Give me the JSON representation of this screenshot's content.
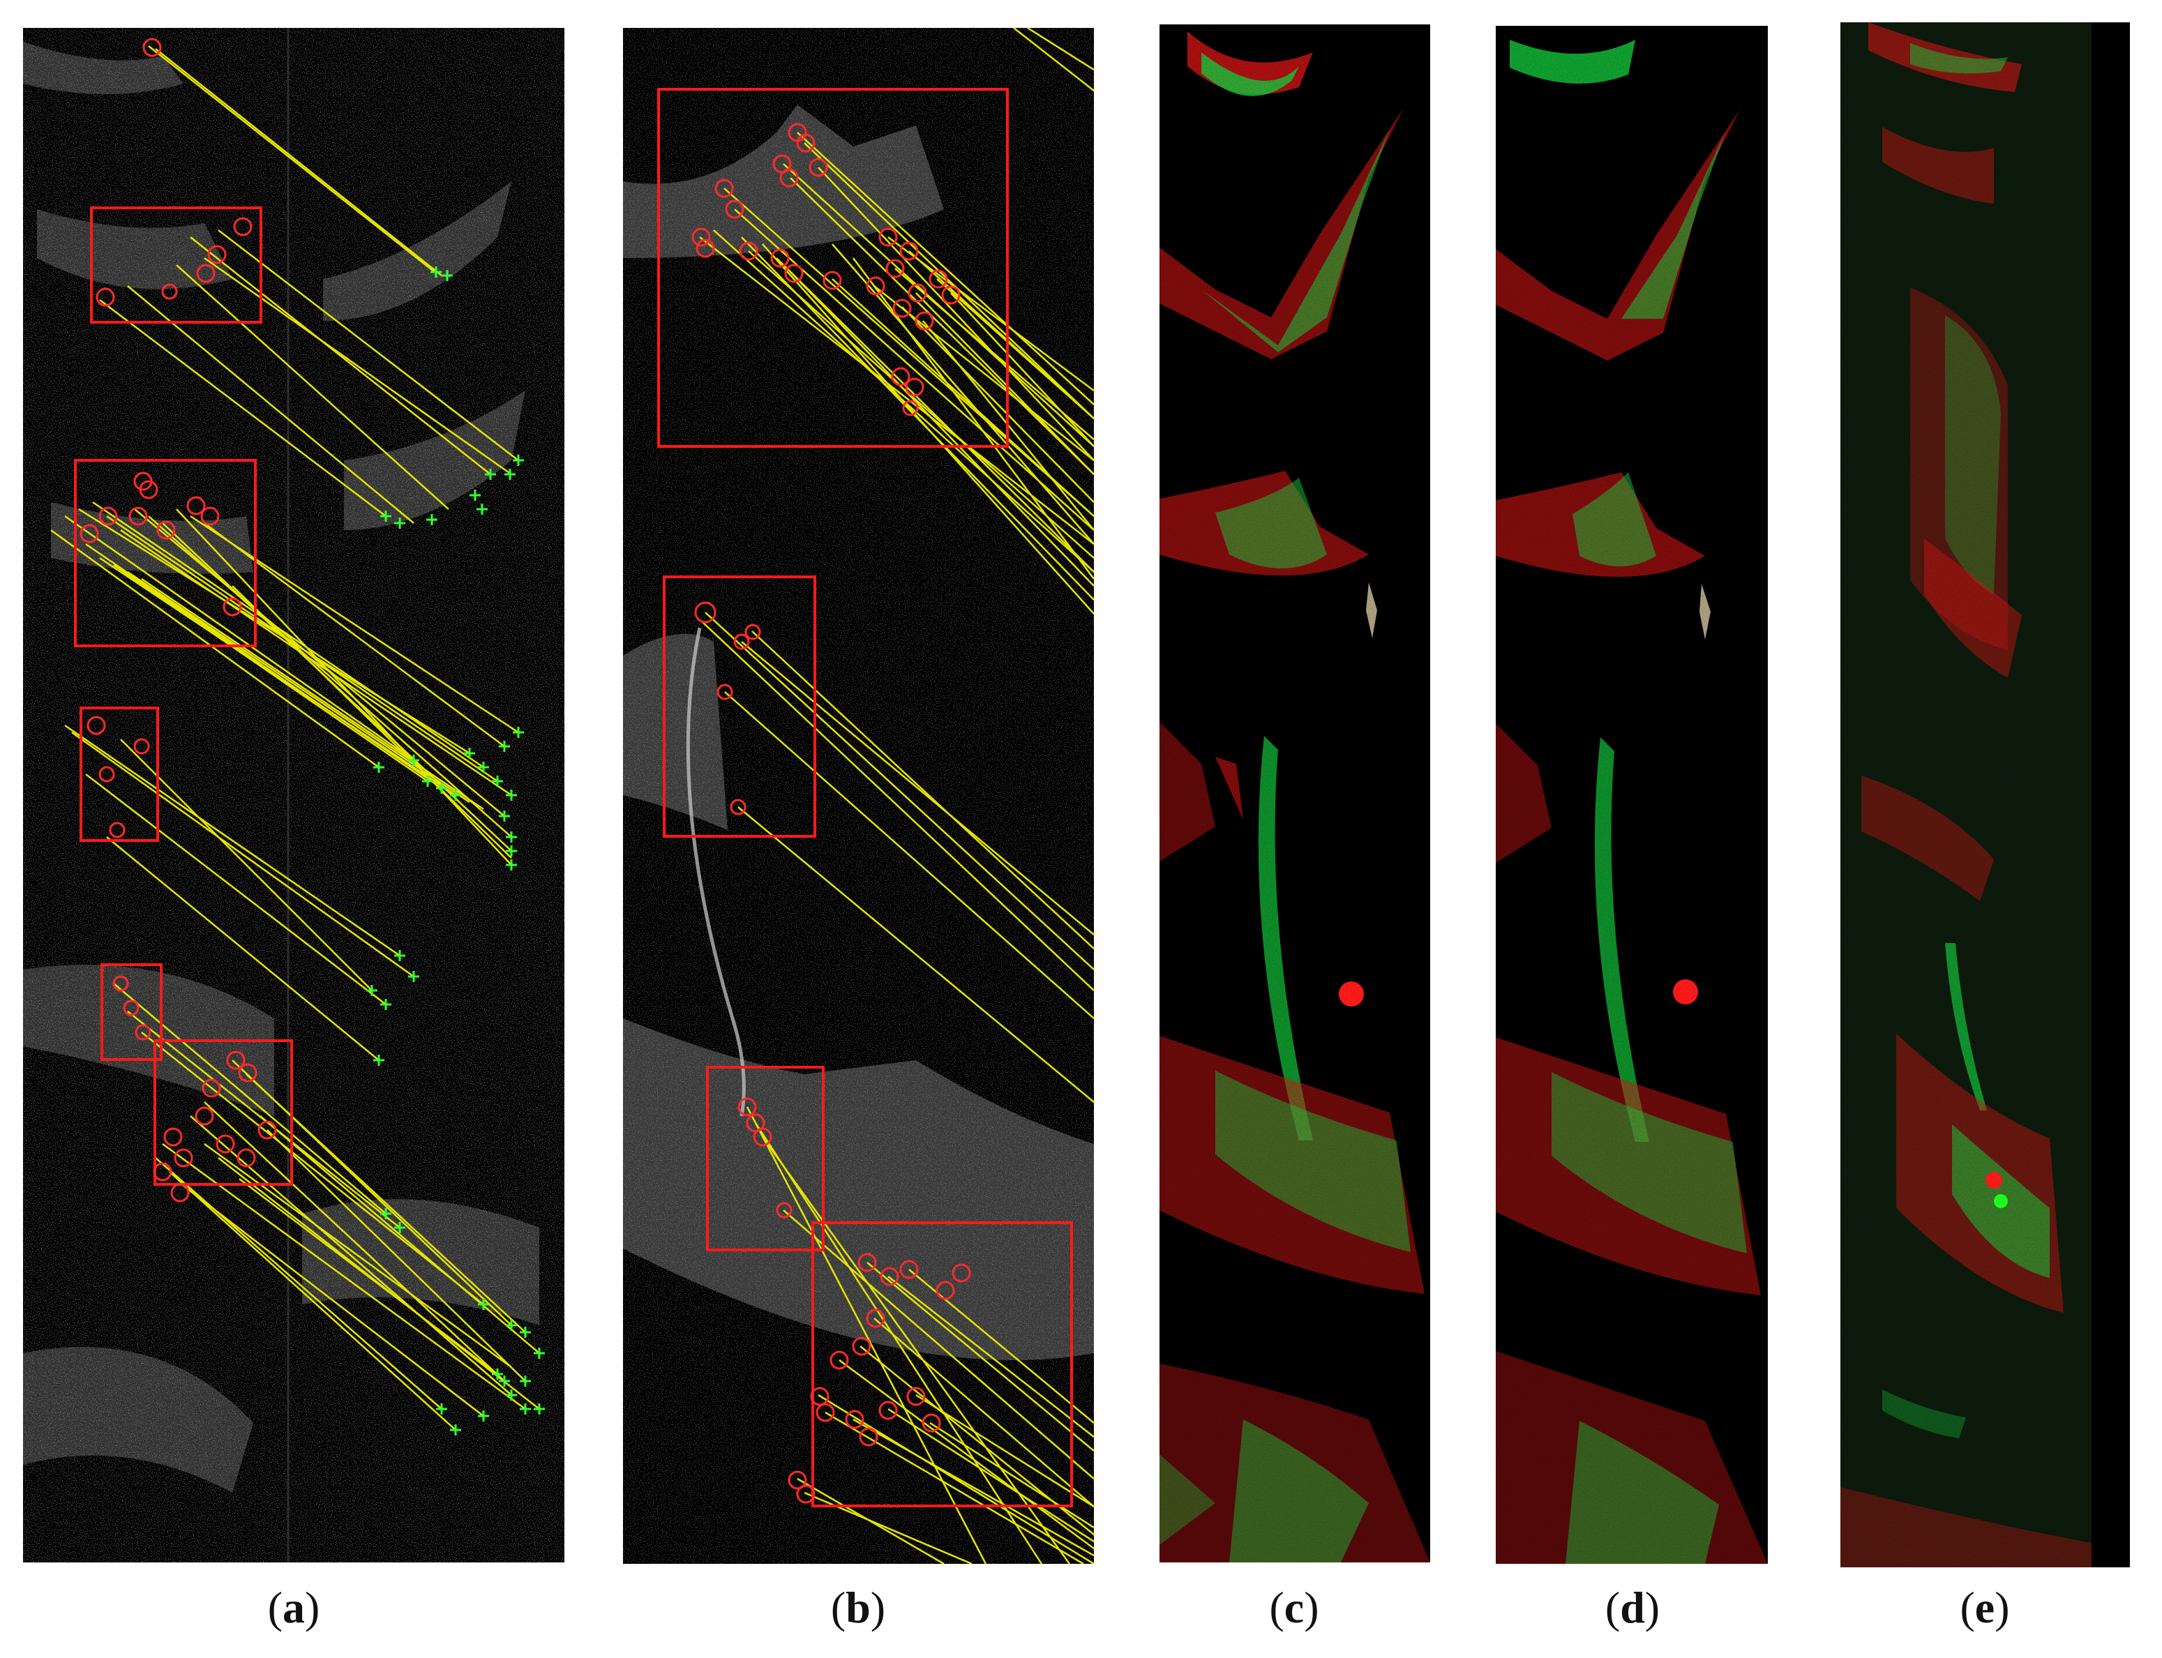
{
  "figure": {
    "captions": {
      "a": {
        "open": "(",
        "letter": "a",
        "close": ")"
      },
      "b": {
        "open": "(",
        "letter": "b",
        "close": ")"
      },
      "c": {
        "open": "(",
        "letter": "c",
        "close": ")"
      },
      "d": {
        "open": "(",
        "letter": "d",
        "close": ")"
      },
      "e": {
        "open": "(",
        "letter": "e",
        "close": ")"
      }
    },
    "colors": {
      "background": "#000000",
      "match_line": "#e6e600",
      "keypoint_circle": "#ff2a2a",
      "keypoint_cross": "#33ff33",
      "roi_box": "#ff1a1a",
      "overlay_red": "#d21414",
      "overlay_green": "#14c83c"
    },
    "panel_contents": {
      "a": "grayscale-speckle-image-with-feature-matches",
      "b": "grayscale-speckle-image-with-feature-matches",
      "c": "red-green-registration-overlay",
      "d": "red-green-registration-overlay",
      "e": "red-green-registration-overlay"
    }
  }
}
